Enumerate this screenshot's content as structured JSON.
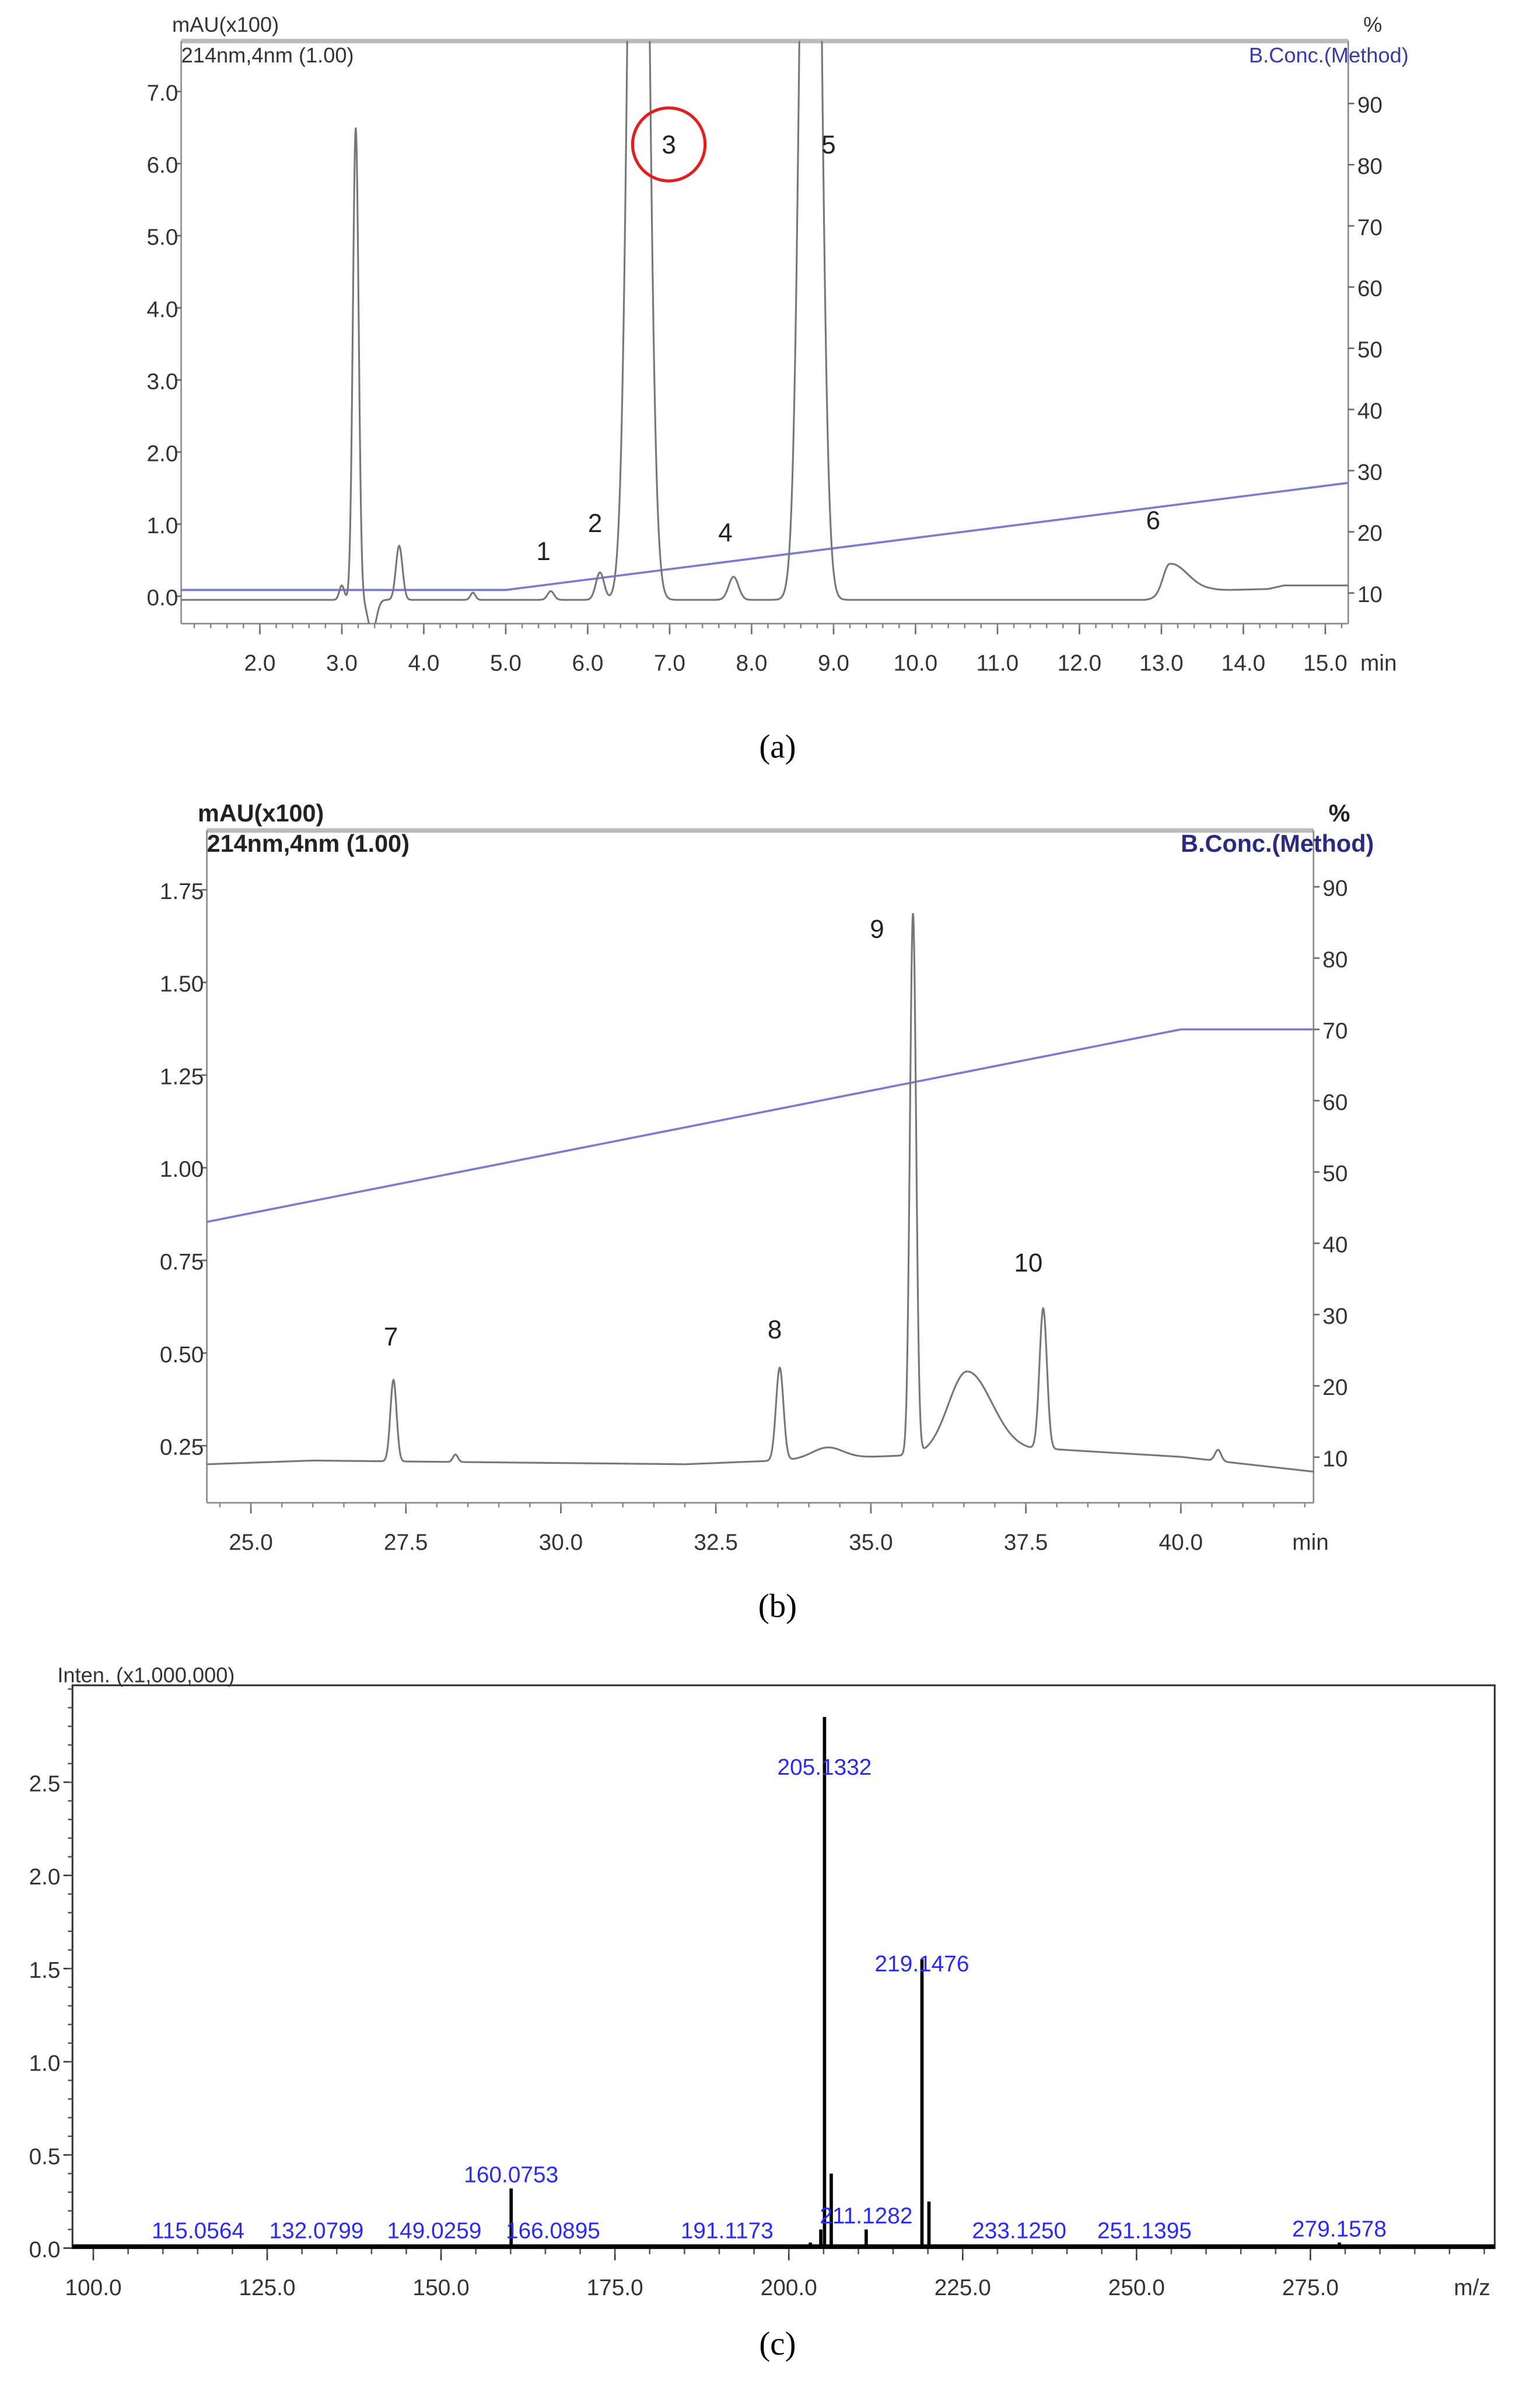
{
  "chart_data": [
    {
      "type": "line",
      "panel": "(a)",
      "ylabel": "mAU(x100)",
      "detector": "214nm,4nm (1.00)",
      "y2label": "%",
      "y2series": "B.Conc.(Method)",
      "xunit": "min",
      "xlim": [
        1.04,
        15.28
      ],
      "ylim": [
        -0.38,
        7.7
      ],
      "y2lim": [
        5,
        100.2
      ],
      "xticks": [
        2,
        3,
        4,
        5,
        6,
        7,
        8,
        9,
        10,
        11,
        12,
        13,
        14,
        15
      ],
      "xtick_labels": [
        "2.0",
        "3.0",
        "4.0",
        "5.0",
        "6.0",
        "7.0",
        "8.0",
        "9.0",
        "10.0",
        "11.0",
        "12.0",
        "13.0",
        "14.0",
        "15.0"
      ],
      "yticks": [
        0,
        1,
        2,
        3,
        4,
        5,
        6,
        7
      ],
      "ytick_labels": [
        "0.0",
        "1.0",
        "2.0",
        "3.0",
        "4.0",
        "5.0",
        "6.0",
        "7.0"
      ],
      "y2ticks": [
        10,
        20,
        30,
        40,
        50,
        60,
        70,
        80,
        90
      ],
      "y2tick_labels": [
        "10",
        "20",
        "30",
        "40",
        "50",
        "60",
        "70",
        "80",
        "90"
      ],
      "baseline": [
        [
          1.04,
          -0.05
        ],
        [
          12.8,
          -0.05
        ],
        [
          13.6,
          0.08
        ],
        [
          14.3,
          0.1
        ],
        [
          14.5,
          0.15
        ],
        [
          15.28,
          0.15
        ]
      ],
      "peaks": [
        {
          "rt": 3.0,
          "h": 0.2,
          "w": 0.03
        },
        {
          "rt": 3.17,
          "h": 6.55,
          "w": 0.035
        },
        {
          "rt": 3.37,
          "h": -0.45,
          "w": 0.05
        },
        {
          "rt": 3.7,
          "h": 0.75,
          "w": 0.04
        },
        {
          "rt": 4.6,
          "h": 0.1,
          "w": 0.03
        },
        {
          "rt": 5.55,
          "h": 0.12,
          "w": 0.04
        },
        {
          "rt": 6.15,
          "h": 0.38,
          "w": 0.05
        },
        {
          "rt": 6.62,
          "h": 20,
          "w": 0.1
        },
        {
          "rt": 7.78,
          "h": 0.32,
          "w": 0.06
        },
        {
          "rt": 8.72,
          "h": 20,
          "w": 0.1
        },
        {
          "rt": 13.1,
          "h": 0.45,
          "w": 0.08,
          "tail": 0.22
        }
      ],
      "gradient": [
        [
          1.04,
          10.5
        ],
        [
          5.0,
          10.5
        ],
        [
          15.28,
          28
        ]
      ],
      "peak_labels": [
        {
          "text": "1",
          "x": 5.46,
          "y": 0.5
        },
        {
          "text": "2",
          "x": 6.09,
          "y": 0.89
        },
        {
          "text": "3",
          "x": 6.99,
          "y": 6.14,
          "circled": true
        },
        {
          "text": "4",
          "x": 7.68,
          "y": 0.76
        },
        {
          "text": "5",
          "x": 8.94,
          "y": 6.14
        },
        {
          "text": "6",
          "x": 12.9,
          "y": 0.93
        }
      ],
      "colors": {
        "trace": "#777777",
        "gradient": "#7b7bd0",
        "circle": "#e02020",
        "y2label": "#3a3aa0"
      }
    },
    {
      "type": "line",
      "panel": "(b)",
      "ylabel": "mAU(x100)",
      "detector": "214nm,4nm (1.00)",
      "y2label": "%",
      "y2series": "B.Conc.(Method)",
      "xunit": "min",
      "xlim": [
        24.29,
        42.14
      ],
      "ylim": [
        0.096,
        1.91
      ],
      "y2lim": [
        3.6,
        97.9
      ],
      "xticks": [
        25,
        27.5,
        30,
        32.5,
        35,
        37.5,
        40
      ],
      "xtick_labels": [
        "25.0",
        "27.5",
        "30.0",
        "32.5",
        "35.0",
        "37.5",
        "40.0"
      ],
      "yticks": [
        0.25,
        0.5,
        0.75,
        1.0,
        1.25,
        1.5,
        1.75
      ],
      "ytick_labels": [
        "0.25",
        "0.50",
        "0.75",
        "1.00",
        "1.25",
        "1.50",
        "1.75"
      ],
      "y2ticks": [
        10,
        20,
        30,
        40,
        50,
        60,
        70,
        80,
        90
      ],
      "y2tick_labels": [
        "10",
        "20",
        "30",
        "40",
        "50",
        "60",
        "70",
        "80",
        "90"
      ],
      "baseline": [
        [
          24.29,
          0.2
        ],
        [
          26,
          0.21
        ],
        [
          32,
          0.2
        ],
        [
          35,
          0.22
        ],
        [
          38,
          0.24
        ],
        [
          40,
          0.22
        ],
        [
          42.14,
          0.18
        ]
      ],
      "peaks": [
        {
          "rt": 27.3,
          "h": 0.22,
          "w": 0.05
        },
        {
          "rt": 28.3,
          "h": 0.02,
          "w": 0.04
        },
        {
          "rt": 33.53,
          "h": 0.25,
          "w": 0.06
        },
        {
          "rt": 34.3,
          "h": 0.03,
          "w": 0.25
        },
        {
          "rt": 35.68,
          "h": 1.46,
          "w": 0.05
        },
        {
          "rt": 36.55,
          "h": 0.22,
          "w": 0.3,
          "tail": 0.4
        },
        {
          "rt": 37.78,
          "h": 0.38,
          "w": 0.06
        },
        {
          "rt": 40.6,
          "h": 0.03,
          "w": 0.05
        }
      ],
      "gradient": [
        [
          24.29,
          43
        ],
        [
          40.0,
          70
        ],
        [
          42.14,
          70
        ]
      ],
      "peak_labels": [
        {
          "text": "7",
          "x": 27.26,
          "y": 0.52
        },
        {
          "text": "8",
          "x": 33.45,
          "y": 0.54
        },
        {
          "text": "9",
          "x": 35.1,
          "y": 1.62
        },
        {
          "text": "10",
          "x": 37.54,
          "y": 0.72
        }
      ],
      "colors": {
        "trace": "#777777",
        "gradient": "#7b7bd0",
        "y2label": "#2a2a80"
      }
    },
    {
      "type": "bar",
      "panel": "(c)",
      "ylabel": "Inten. (x1,000,000)",
      "xunit": "m/z",
      "xlim": [
        97,
        301.5
      ],
      "ylim": [
        0,
        3.02
      ],
      "xticks": [
        100,
        125,
        150,
        175,
        200,
        225,
        250,
        275
      ],
      "xtick_labels": [
        "100.0",
        "125.0",
        "150.0",
        "175.0",
        "200.0",
        "225.0",
        "250.0",
        "275.0"
      ],
      "yticks": [
        0,
        0.5,
        1.0,
        1.5,
        2.0,
        2.5
      ],
      "ytick_labels": [
        "0.0",
        "0.5",
        "1.0",
        "1.5",
        "2.0",
        "2.5"
      ],
      "peaks": [
        {
          "mz": 115.0564,
          "intensity": 0.01,
          "label": "115.0564"
        },
        {
          "mz": 132.0799,
          "intensity": 0.01,
          "label": "132.0799"
        },
        {
          "mz": 149.0259,
          "intensity": 0.01,
          "label": "149.0259"
        },
        {
          "mz": 160.0753,
          "intensity": 0.32,
          "label": "160.0753"
        },
        {
          "mz": 166.0895,
          "intensity": 0.01,
          "label": "166.0895"
        },
        {
          "mz": 191.1173,
          "intensity": 0.01,
          "label": "191.1173"
        },
        {
          "mz": 203.1,
          "intensity": 0.03,
          "label": ""
        },
        {
          "mz": 204.6,
          "intensity": 0.1,
          "label": ""
        },
        {
          "mz": 205.1332,
          "intensity": 2.85,
          "label": "205.1332"
        },
        {
          "mz": 206.1,
          "intensity": 0.4,
          "label": ""
        },
        {
          "mz": 211.1282,
          "intensity": 0.1,
          "label": "211.1282"
        },
        {
          "mz": 219.1476,
          "intensity": 1.55,
          "label": "219.1476"
        },
        {
          "mz": 220.15,
          "intensity": 0.25,
          "label": ""
        },
        {
          "mz": 233.125,
          "intensity": 0.01,
          "label": "233.1250"
        },
        {
          "mz": 251.1395,
          "intensity": 0.01,
          "label": "251.1395"
        },
        {
          "mz": 279.1578,
          "intensity": 0.03,
          "label": "279.1578"
        }
      ],
      "colors": {
        "bar": "#000000",
        "label": "#2a2af0"
      }
    }
  ],
  "captions": [
    "(a)",
    "(b)",
    "(c)"
  ]
}
